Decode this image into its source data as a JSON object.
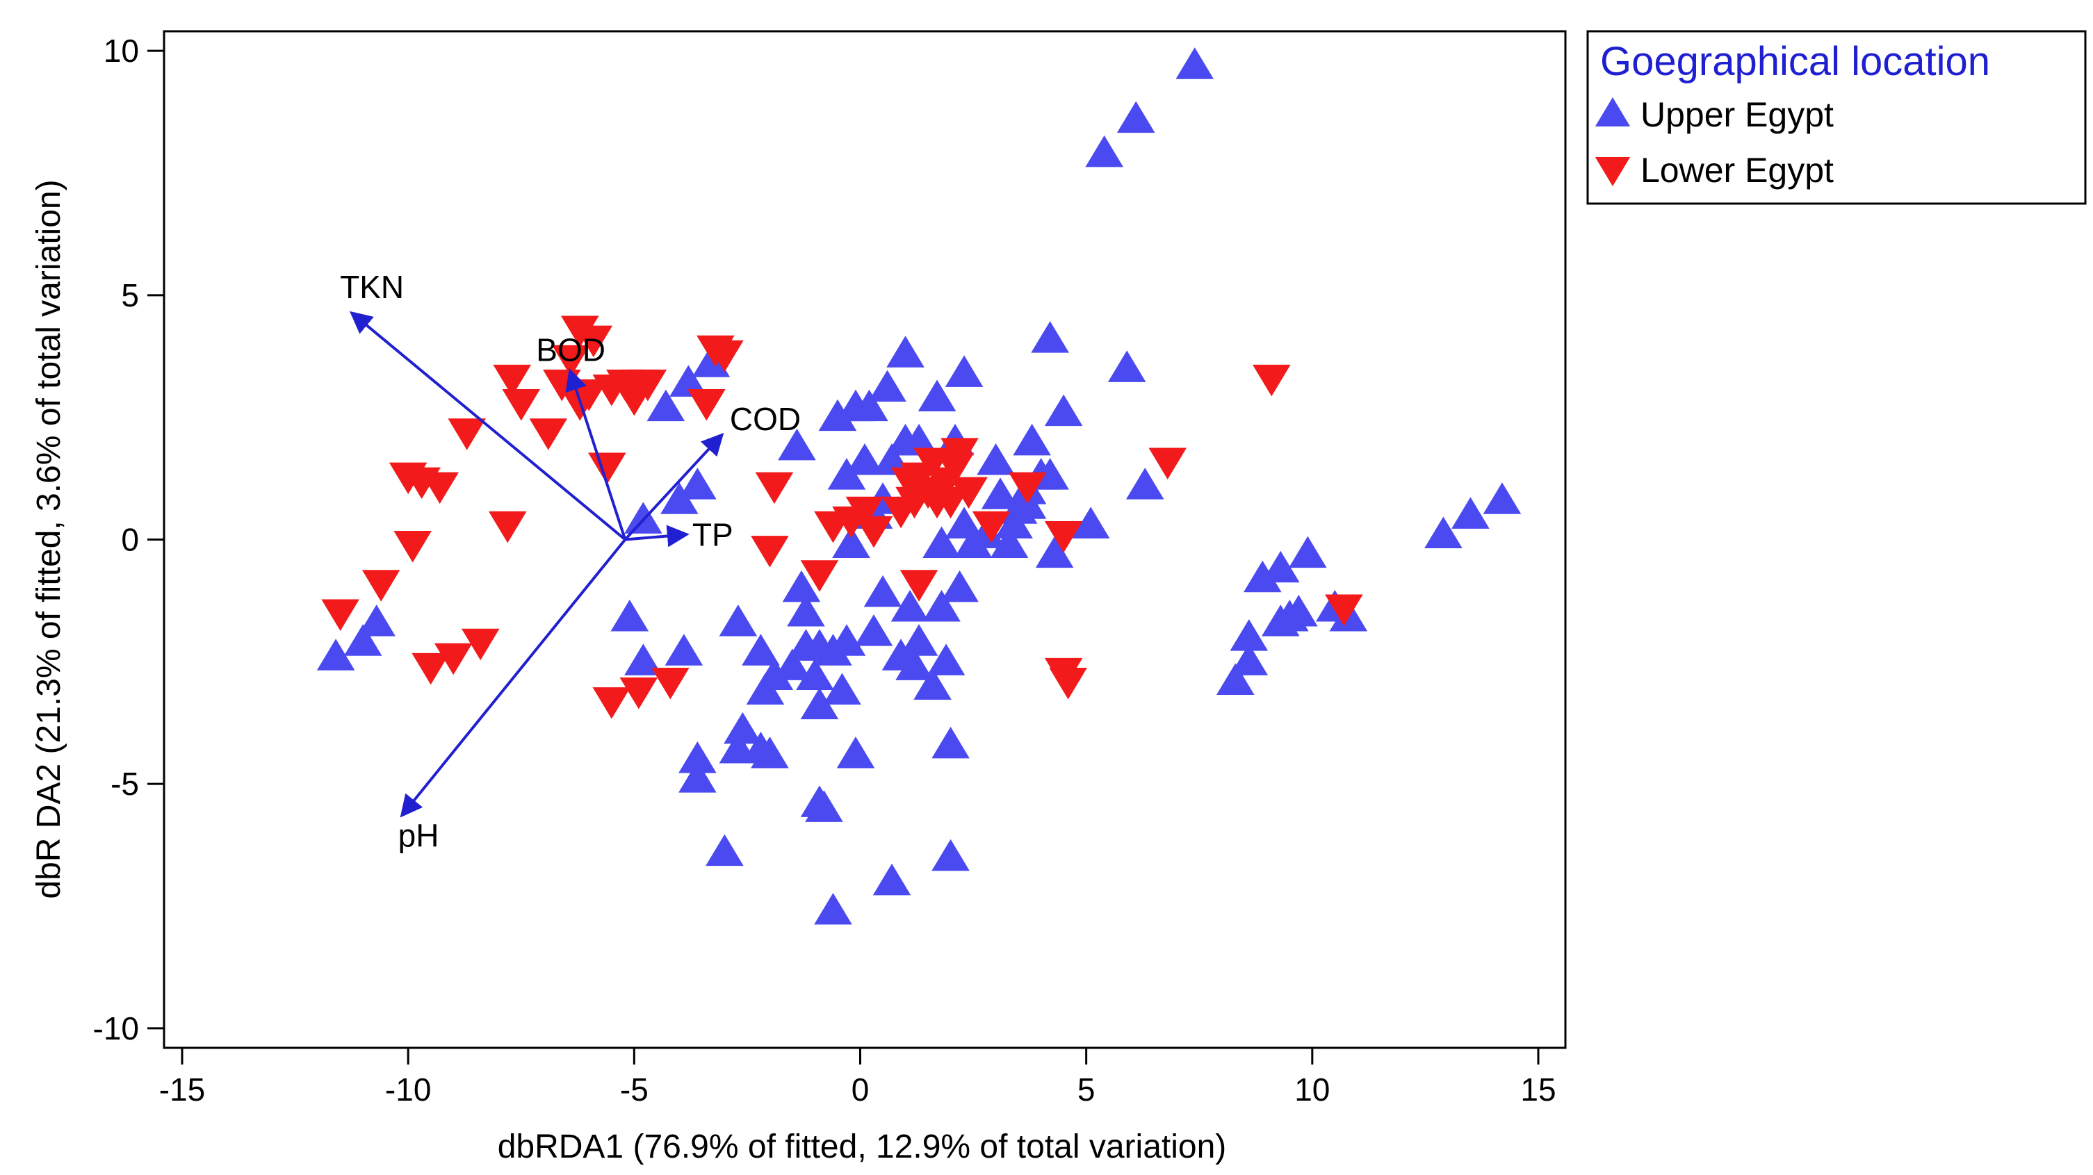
{
  "chart_data": {
    "type": "scatter",
    "title": "",
    "xlabel": "dbRDA1 (76.9% of fitted, 12.9% of total variation)",
    "ylabel": "dbR DA2 (21.3% of fitted, 3.6% of total variation)",
    "xlim": [
      -15.4,
      15.6
    ],
    "ylim": [
      -10.4,
      10.4
    ],
    "xticks": [
      -15,
      -10,
      -5,
      0,
      5,
      10,
      15
    ],
    "yticks": [
      10,
      5,
      0,
      -5,
      -10
    ],
    "grid": false,
    "legend": {
      "title": "Goegraphical location",
      "position": "outside-top-right",
      "title_color": "#1f1fd1",
      "entries": [
        "Upper Egypt",
        "Lower Egypt"
      ]
    },
    "series": [
      {
        "name": "Upper Egypt",
        "marker": "triangle-up",
        "color": "#4a4af0",
        "points": [
          [
            7.4,
            9.7
          ],
          [
            6.1,
            8.6
          ],
          [
            5.4,
            7.9
          ],
          [
            4.2,
            4.1
          ],
          [
            5.9,
            3.5
          ],
          [
            4.5,
            2.6
          ],
          [
            6.3,
            1.1
          ],
          [
            5.1,
            0.3
          ],
          [
            4.3,
            -0.3
          ],
          [
            3.8,
            2.0
          ],
          [
            4.0,
            1.3
          ],
          [
            4.2,
            1.3
          ],
          [
            3.7,
            1.0
          ],
          [
            3.5,
            0.6
          ],
          [
            3.4,
            0.3
          ],
          [
            3.1,
            0.9
          ],
          [
            3.0,
            1.6
          ],
          [
            2.8,
            0.1
          ],
          [
            2.5,
            -0.1
          ],
          [
            2.3,
            0.3
          ],
          [
            3.3,
            -0.1
          ],
          [
            3.7,
            0.7
          ],
          [
            2.3,
            3.4
          ],
          [
            1.7,
            2.9
          ],
          [
            1.0,
            3.8
          ],
          [
            0.6,
            3.1
          ],
          [
            0.2,
            2.7
          ],
          [
            -0.1,
            2.7
          ],
          [
            -0.5,
            2.5
          ],
          [
            0.1,
            1.6
          ],
          [
            0.7,
            1.6
          ],
          [
            1.0,
            2.0
          ],
          [
            1.3,
            2.0
          ],
          [
            2.1,
            2.0
          ],
          [
            -0.3,
            1.3
          ],
          [
            0.5,
            0.8
          ],
          [
            0.3,
            0.5
          ],
          [
            -0.2,
            -0.1
          ],
          [
            1.8,
            -0.1
          ],
          [
            2.2,
            -1.0
          ],
          [
            1.8,
            -1.4
          ],
          [
            1.1,
            -1.4
          ],
          [
            0.5,
            -1.1
          ],
          [
            0.3,
            -1.9
          ],
          [
            -0.3,
            -2.1
          ],
          [
            -0.6,
            -2.3
          ],
          [
            -0.9,
            -2.2
          ],
          [
            -1.2,
            -2.2
          ],
          [
            1.3,
            -2.1
          ],
          [
            0.9,
            -2.4
          ],
          [
            1.2,
            -2.6
          ],
          [
            1.6,
            -3.0
          ],
          [
            1.9,
            -2.5
          ],
          [
            -1.3,
            -1.0
          ],
          [
            -1.2,
            -1.5
          ],
          [
            -1.5,
            -2.6
          ],
          [
            -1.9,
            -2.8
          ],
          [
            -2.2,
            -2.3
          ],
          [
            -2.1,
            -3.1
          ],
          [
            -2.7,
            -1.7
          ],
          [
            -1.0,
            -2.8
          ],
          [
            -0.9,
            -3.4
          ],
          [
            -0.4,
            -3.1
          ],
          [
            -1.4,
            1.9
          ],
          [
            -3.3,
            3.6
          ],
          [
            -3.8,
            3.2
          ],
          [
            -4.3,
            2.7
          ],
          [
            -3.6,
            1.1
          ],
          [
            -4.0,
            0.8
          ],
          [
            -4.8,
            0.4
          ],
          [
            -5.1,
            -1.6
          ],
          [
            -4.8,
            -2.5
          ],
          [
            -3.9,
            -2.3
          ],
          [
            -3.6,
            -4.5
          ],
          [
            -3.6,
            -4.9
          ],
          [
            -2.7,
            -4.3
          ],
          [
            -2.6,
            -3.9
          ],
          [
            -2.2,
            -4.3
          ],
          [
            -2.0,
            -4.4
          ],
          [
            -0.1,
            -4.4
          ],
          [
            -0.9,
            -5.4
          ],
          [
            -0.8,
            -5.5
          ],
          [
            2.0,
            -4.2
          ],
          [
            -3.0,
            -6.4
          ],
          [
            0.7,
            -7.0
          ],
          [
            -0.6,
            -7.6
          ],
          [
            2.0,
            -6.5
          ],
          [
            8.3,
            -2.9
          ],
          [
            8.6,
            -2.5
          ],
          [
            8.6,
            -2.0
          ],
          [
            8.9,
            -0.8
          ],
          [
            9.3,
            -1.7
          ],
          [
            9.5,
            -1.6
          ],
          [
            9.3,
            -0.6
          ],
          [
            9.7,
            -1.5
          ],
          [
            9.9,
            -0.3
          ],
          [
            10.5,
            -1.4
          ],
          [
            10.8,
            -1.6
          ],
          [
            12.9,
            0.1
          ],
          [
            13.5,
            0.5
          ],
          [
            14.2,
            0.8
          ],
          [
            -11.6,
            -2.4
          ],
          [
            -11.0,
            -2.1
          ],
          [
            -10.7,
            -1.7
          ]
        ]
      },
      {
        "name": "Lower Egypt",
        "marker": "triangle-down",
        "color": "#f21a1a",
        "points": [
          [
            -6.2,
            4.3
          ],
          [
            -5.9,
            4.1
          ],
          [
            -6.4,
            3.7
          ],
          [
            -6.6,
            3.2
          ],
          [
            -6.0,
            3.0
          ],
          [
            -6.2,
            2.8
          ],
          [
            -5.5,
            3.1
          ],
          [
            -5.2,
            3.2
          ],
          [
            -5.0,
            2.9
          ],
          [
            -4.9,
            3.2
          ],
          [
            -4.7,
            3.2
          ],
          [
            -3.2,
            3.9
          ],
          [
            -3.0,
            3.8
          ],
          [
            -3.4,
            2.8
          ],
          [
            -7.7,
            3.3
          ],
          [
            -7.5,
            2.8
          ],
          [
            -6.9,
            2.2
          ],
          [
            -8.7,
            2.2
          ],
          [
            -5.6,
            1.5
          ],
          [
            -10.0,
            1.3
          ],
          [
            -9.7,
            1.2
          ],
          [
            -9.3,
            1.1
          ],
          [
            -7.8,
            0.3
          ],
          [
            -9.9,
            -0.1
          ],
          [
            -10.6,
            -0.9
          ],
          [
            -11.5,
            -1.5
          ],
          [
            -8.4,
            -2.1
          ],
          [
            -9.0,
            -2.4
          ],
          [
            -9.5,
            -2.6
          ],
          [
            -5.5,
            -3.3
          ],
          [
            -4.9,
            -3.1
          ],
          [
            -4.2,
            -2.9
          ],
          [
            -2.0,
            -0.2
          ],
          [
            -0.9,
            -0.7
          ],
          [
            -0.6,
            0.3
          ],
          [
            -0.2,
            0.4
          ],
          [
            -1.9,
            1.1
          ],
          [
            0.1,
            0.6
          ],
          [
            0.3,
            0.2
          ],
          [
            1.3,
            -0.9
          ],
          [
            1.3,
            1.3
          ],
          [
            1.5,
            1.0
          ],
          [
            1.7,
            0.8
          ],
          [
            1.9,
            1.2
          ],
          [
            2.0,
            0.8
          ],
          [
            2.1,
            1.5
          ],
          [
            2.4,
            1.0
          ],
          [
            2.2,
            1.8
          ],
          [
            1.6,
            1.6
          ],
          [
            1.1,
            1.2
          ],
          [
            1.2,
            0.8
          ],
          [
            0.9,
            0.6
          ],
          [
            3.7,
            1.1
          ],
          [
            2.9,
            0.3
          ],
          [
            4.5,
            0.1
          ],
          [
            4.5,
            -2.7
          ],
          [
            4.6,
            -2.9
          ],
          [
            6.8,
            1.6
          ],
          [
            9.1,
            3.3
          ],
          [
            10.7,
            -1.4
          ]
        ]
      }
    ],
    "vectors": [
      {
        "name": "TKN",
        "x": -11.2,
        "y": 4.6
      },
      {
        "name": "BOD",
        "x": -6.4,
        "y": 3.4
      },
      {
        "name": "COD",
        "x": -3.1,
        "y": 2.1
      },
      {
        "name": "TP",
        "x": -3.9,
        "y": 0.1
      },
      {
        "name": "pH",
        "x": -10.1,
        "y": -5.6
      }
    ],
    "vector_origin": [
      -5.2,
      0.0
    ],
    "vector_color": "#2020d0"
  }
}
